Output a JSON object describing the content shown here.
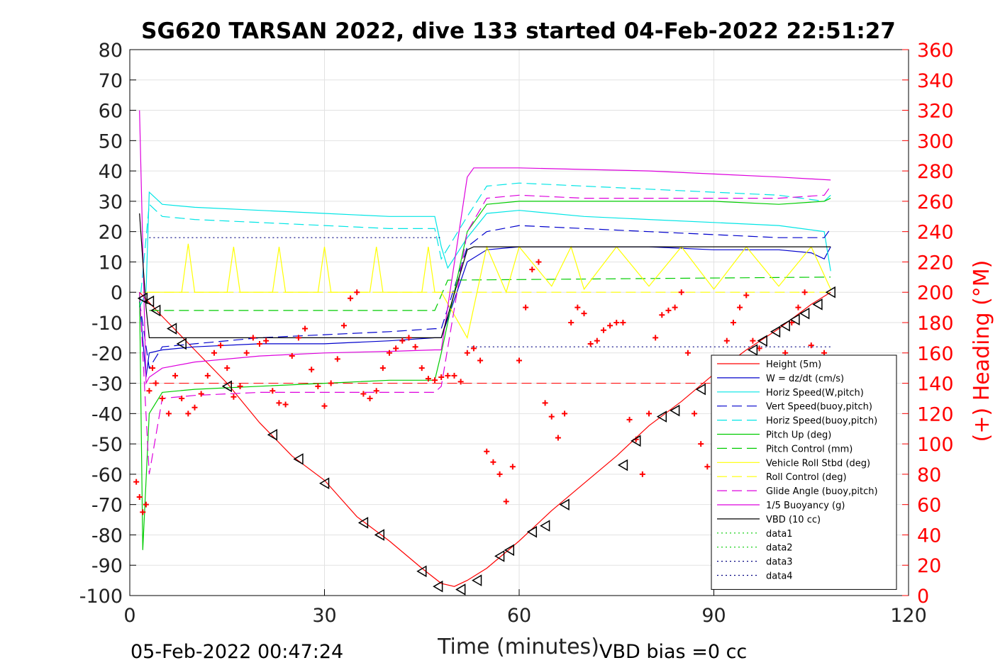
{
  "chart_data": {
    "type": "line",
    "title": "SG620 TARSAN 2022, dive 133 started 04-Feb-2022 22:51:27",
    "xlabel": "Time (minutes)",
    "ylabel": "",
    "ylabel_right": "(+) Heading (°M)",
    "xlim": [
      0,
      120
    ],
    "ylim": [
      -100,
      80
    ],
    "ylim_right": [
      0,
      360
    ],
    "x_ticks": [
      0,
      30,
      60,
      90,
      120
    ],
    "y_ticks": [
      80,
      70,
      60,
      50,
      40,
      30,
      20,
      10,
      0,
      -10,
      -20,
      -30,
      -40,
      -50,
      -60,
      -70,
      -80,
      -90,
      -100
    ],
    "y_ticks_right": [
      360,
      340,
      320,
      300,
      280,
      260,
      240,
      220,
      200,
      180,
      160,
      140,
      120,
      100,
      80,
      60,
      40,
      20,
      0
    ],
    "grid": true,
    "legend_position": "bottom-right",
    "footer_left": "05-Feb-2022 00:47:24",
    "footer_right": "VBD bias =0 cc",
    "series": [
      {
        "name": "Height (5m)",
        "color": "#ff0000",
        "style": "solid",
        "x": [
          1.5,
          5,
          10,
          15,
          20,
          25,
          30,
          35,
          40,
          45,
          48,
          50,
          52,
          55,
          60,
          65,
          70,
          75,
          80,
          85,
          90,
          95,
          100,
          105,
          108
        ],
        "y": [
          0,
          -8,
          -19,
          -30,
          -43,
          -54,
          -62,
          -74,
          -82,
          -91,
          -96,
          -97,
          -95,
          -91,
          -82,
          -72,
          -63,
          -54,
          -44,
          -36,
          -27,
          -19,
          -12,
          -4,
          0
        ]
      },
      {
        "name": "W = dz/dt (cm/s)",
        "color": "#0000cc",
        "style": "solid",
        "x": [
          1.5,
          2.5,
          3,
          5,
          10,
          20,
          30,
          40,
          47,
          48,
          52,
          55,
          60,
          70,
          80,
          90,
          100,
          105,
          107,
          108
        ],
        "y": [
          -3,
          -28,
          -20,
          -19,
          -18,
          -17,
          -17,
          -16,
          -15,
          -15,
          10,
          14,
          15,
          15,
          15,
          14,
          14,
          13,
          11,
          15
        ]
      },
      {
        "name": "Horiz Speed(W,pitch)",
        "color": "#00e5e5",
        "style": "solid",
        "x": [
          1.5,
          2.5,
          3,
          5,
          10,
          20,
          30,
          40,
          47,
          48,
          49,
          52,
          55,
          60,
          70,
          80,
          90,
          100,
          107,
          108
        ],
        "y": [
          -5,
          0,
          33,
          29,
          28,
          27,
          26,
          25,
          25,
          15,
          8,
          18,
          26,
          27,
          25,
          24,
          23,
          22,
          20,
          7
        ]
      },
      {
        "name": "Vert Speed(buoy,pitch)",
        "color": "#0000cc",
        "style": "dashed",
        "x": [
          1.5,
          3,
          5,
          10,
          20,
          30,
          40,
          47,
          48,
          52,
          55,
          60,
          70,
          80,
          90,
          100,
          107,
          108
        ],
        "y": [
          -3,
          -25,
          -18,
          -17,
          -15,
          -14,
          -13,
          -12,
          -12,
          15,
          20,
          22,
          21,
          20,
          19,
          18,
          18,
          21
        ]
      },
      {
        "name": "Horiz Speed(buoy,pitch)",
        "color": "#00e5e5",
        "style": "dashed",
        "x": [
          1.5,
          3,
          5,
          10,
          20,
          30,
          40,
          47,
          48,
          52,
          55,
          60,
          70,
          80,
          90,
          100,
          107,
          108
        ],
        "y": [
          -5,
          29,
          25,
          24,
          23,
          22,
          21,
          21,
          11,
          25,
          35,
          36,
          35,
          34,
          33,
          32,
          30,
          32
        ]
      },
      {
        "name": "Pitch Up (deg)",
        "color": "#00cc00",
        "style": "solid",
        "x": [
          1.5,
          2,
          3,
          5,
          10,
          20,
          30,
          40,
          47,
          48,
          52,
          55,
          60,
          70,
          80,
          90,
          100,
          107,
          108
        ],
        "y": [
          0,
          -85,
          -40,
          -33,
          -32,
          -31,
          -30,
          -29,
          -29,
          -20,
          20,
          29,
          30,
          30,
          30,
          30,
          29,
          30,
          31
        ]
      },
      {
        "name": "Pitch Control (mm)",
        "color": "#00cc00",
        "style": "dashed",
        "x": [
          3,
          47,
          49,
          108
        ],
        "y": [
          -6,
          -6,
          4,
          5
        ]
      },
      {
        "name": "Vehicle Roll Stbd (deg)",
        "color": "#ffff00",
        "style": "solid",
        "x": [
          2,
          5,
          8,
          9,
          10,
          15,
          16,
          17,
          22,
          23,
          24,
          29,
          30,
          31,
          37,
          38,
          39,
          45,
          46,
          47,
          48,
          52,
          55,
          58,
          60,
          65,
          68,
          70,
          75,
          80,
          85,
          90,
          95,
          100,
          105,
          108
        ],
        "y": [
          0,
          0,
          0,
          16,
          0,
          0,
          15,
          0,
          0,
          15,
          0,
          0,
          15,
          0,
          0,
          15,
          0,
          0,
          15,
          0,
          0,
          -15,
          15,
          0,
          15,
          2,
          15,
          1,
          15,
          2,
          15,
          1,
          15,
          2,
          15,
          1
        ]
      },
      {
        "name": "Roll Control (deg)",
        "color": "#ffff00",
        "style": "dashed",
        "x": [
          3,
          108
        ],
        "y": [
          0,
          0
        ]
      },
      {
        "name": "Glide Angle (buoy,pitch)",
        "color": "#dd00dd",
        "style": "dashed",
        "x": [
          1.5,
          3,
          5,
          10,
          20,
          30,
          40,
          47,
          48,
          52,
          55,
          60,
          70,
          80,
          90,
          100,
          107,
          108
        ],
        "y": [
          0,
          -60,
          -35,
          -34,
          -33,
          -33,
          -33,
          -33,
          -31,
          20,
          31,
          32,
          31,
          31,
          31,
          31,
          32,
          35
        ]
      },
      {
        "name": "1/5 Buoyancy (g)",
        "color": "#dd00dd",
        "style": "solid",
        "x": [
          1.5,
          2.5,
          3,
          5,
          10,
          20,
          30,
          40,
          47,
          48,
          52,
          53,
          60,
          70,
          80,
          90,
          100,
          108
        ],
        "y": [
          60,
          -30,
          -28,
          -25,
          -23,
          -21,
          -20,
          -19.5,
          -19,
          -19,
          38,
          41,
          41,
          40.5,
          40,
          39,
          38,
          37
        ]
      },
      {
        "name": "VBD (10 cc)",
        "color": "#000000",
        "style": "solid",
        "x": [
          1.5,
          2.5,
          3,
          10,
          20,
          30,
          40,
          47,
          48,
          52,
          53,
          60,
          70,
          80,
          90,
          100,
          108
        ],
        "y": [
          26,
          -5,
          -15,
          -15,
          -15,
          -15,
          -15,
          -15,
          -15,
          14,
          15,
          15,
          15,
          15,
          15,
          15,
          15
        ]
      },
      {
        "name": "data1",
        "color": "#00cc00",
        "style": "dotted",
        "x": [],
        "y": []
      },
      {
        "name": "data2",
        "color": "#00cc00",
        "style": "dotted",
        "x": [],
        "y": []
      },
      {
        "name": "data3",
        "color": "#000080",
        "style": "dotted",
        "x": [
          3,
          48
        ],
        "y": [
          18,
          18
        ]
      },
      {
        "name": "data4",
        "color": "#000080",
        "style": "dotted",
        "x": [
          52,
          108
        ],
        "y": [
          -18,
          -18
        ]
      }
    ],
    "reference_lines": [
      {
        "color": "#ff0000",
        "style": "dashed",
        "y": -30,
        "x": [
          3,
          108
        ]
      }
    ],
    "heading": {
      "color": "#ff0000",
      "x": [
        1,
        1.5,
        2,
        2.5,
        3,
        3.5,
        4,
        5,
        6,
        7,
        8,
        9,
        10,
        11,
        12,
        13,
        14,
        15,
        16,
        17,
        18,
        19,
        20,
        21,
        22,
        23,
        24,
        25,
        26,
        27,
        28,
        29,
        30,
        31,
        32,
        33,
        34,
        35,
        36,
        37,
        38,
        39,
        40,
        41,
        42,
        43,
        44,
        45,
        46,
        47,
        48,
        49,
        50,
        51,
        52,
        53,
        54,
        55,
        56,
        57,
        58,
        59,
        60,
        61,
        62,
        63,
        64,
        65,
        66,
        67,
        68,
        69,
        70,
        71,
        72,
        73,
        74,
        75,
        76,
        77,
        78,
        79,
        80,
        81,
        82,
        83,
        84,
        85,
        86,
        87,
        88,
        89,
        90,
        91,
        92,
        93,
        94,
        95,
        96,
        97,
        98,
        99,
        100,
        101,
        102,
        103,
        104,
        105,
        106,
        107
      ],
      "y": [
        75,
        65,
        55,
        60,
        135,
        150,
        140,
        130,
        120,
        145,
        130,
        120,
        124,
        133,
        145,
        160,
        165,
        150,
        131,
        138,
        160,
        170,
        166,
        168,
        135,
        127,
        126,
        158,
        170,
        176,
        149,
        138,
        125,
        140,
        156,
        178,
        196,
        200,
        133,
        130,
        135,
        150,
        160,
        163,
        168,
        170,
        164,
        150,
        143,
        142,
        144,
        145,
        145,
        141,
        160,
        163,
        155,
        95,
        88,
        80,
        62,
        85,
        155,
        190,
        215,
        220,
        127,
        118,
        104,
        120,
        180,
        190,
        186,
        166,
        168,
        175,
        178,
        180,
        180,
        116,
        103,
        80,
        120,
        170,
        185,
        188,
        190,
        200,
        160,
        120,
        100,
        85,
        85,
        150,
        168,
        180,
        190,
        198,
        168,
        163,
        150,
        140,
        135,
        160,
        180,
        190,
        200,
        165,
        155,
        160
      ]
    },
    "markers": {
      "shape": "triangle-left",
      "color": "#000000",
      "x": [
        2,
        3,
        4,
        6.5,
        8,
        15,
        22,
        26,
        30,
        36,
        38.5,
        45,
        47.5,
        51,
        53.5,
        57,
        58.5,
        62,
        64,
        67,
        76,
        78,
        82,
        84,
        88,
        96,
        97.5,
        99.5,
        101,
        102.5,
        104,
        106,
        108
      ],
      "y": [
        -2,
        -3,
        -6,
        -12,
        -17,
        -31,
        -47,
        -55,
        -63,
        -76,
        -80,
        -92,
        -97,
        -98,
        -95,
        -87,
        -85,
        -79,
        -77,
        -70,
        -57,
        -49,
        -41,
        -39,
        -32,
        -19,
        -16,
        -13,
        -11,
        -9,
        -7,
        -4,
        0
      ]
    }
  }
}
